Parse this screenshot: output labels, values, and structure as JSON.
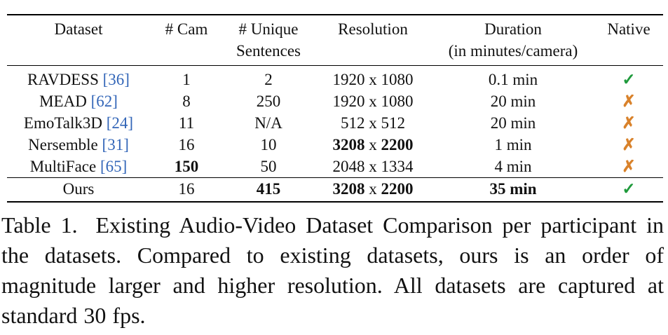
{
  "table": {
    "headers": [
      {
        "line1": "Dataset",
        "line2": ""
      },
      {
        "line1": "# Cam",
        "line2": ""
      },
      {
        "line1": "# Unique",
        "line2": "Sentences"
      },
      {
        "line1": "Resolution",
        "line2": ""
      },
      {
        "line1": "Duration",
        "line2": "(in minutes/camera)"
      },
      {
        "line1": "Native",
        "line2": ""
      }
    ],
    "rows": [
      {
        "name": "RAVDESS",
        "cite": "[36]",
        "cams": "1",
        "sentences": "2",
        "res_w": "1920",
        "res_x": "x",
        "res_h": "1080",
        "duration": "0.1 min",
        "native": "✓"
      },
      {
        "name": "MEAD",
        "cite": "[62]",
        "cams": "8",
        "sentences": "250",
        "res_w": "1920",
        "res_x": "x",
        "res_h": "1080",
        "duration": "20 min",
        "native": "✗"
      },
      {
        "name": "EmoTalk3D",
        "cite": "[24]",
        "cams": "11",
        "sentences": "N/A",
        "res_w": "512",
        "res_x": "x",
        "res_h": "512",
        "duration": "20 min",
        "native": "✗"
      },
      {
        "name": "Nersemble",
        "cite": "[31]",
        "cams": "16",
        "sentences": "10",
        "res_w": "3208",
        "res_x": "x",
        "res_h": "2200",
        "duration": "1 min",
        "native": "✗"
      },
      {
        "name": "MultiFace",
        "cite": "[65]",
        "cams": "150",
        "sentences": "50",
        "res_w": "2048",
        "res_x": "x",
        "res_h": "1334",
        "duration": "4 min",
        "native": "✗"
      },
      {
        "name": "Ours",
        "cite": "",
        "cams": "16",
        "sentences": "415",
        "res_w": "3208",
        "res_x": "x",
        "res_h": "2200",
        "duration": "35 min",
        "native": "✓"
      }
    ]
  },
  "caption": {
    "label": "Table 1.",
    "text": "Existing Audio-Video Dataset Comparison per participant in the datasets. Compared to existing datasets, ours is an order of magnitude larger and higher resolution. All datasets are captured at standard 30 fps."
  },
  "colors": {
    "cite": "#3366b8",
    "check": "#1f9a3c",
    "cross": "#d9822b"
  }
}
